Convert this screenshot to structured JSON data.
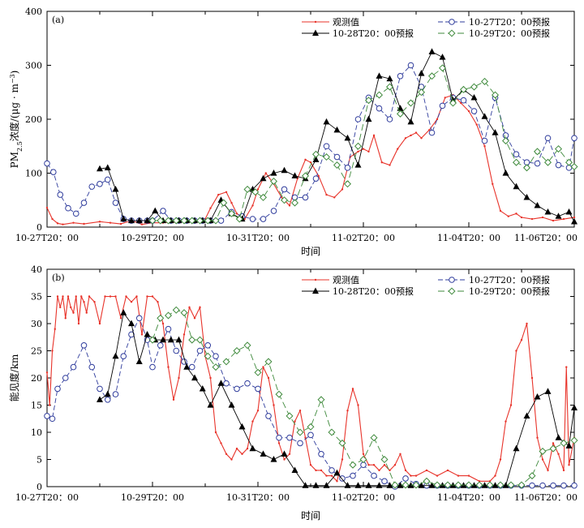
{
  "chart_data": [
    {
      "panel_label": "(a)",
      "type": "line",
      "xlabel": "时间",
      "ylabel_main": "PM",
      "ylabel_sub": "2.5",
      "ylabel_rest": "浓度/(μg · m",
      "ylabel_sup": "−3",
      "ylabel_end": ")",
      "x_range_days": [
        0,
        10
      ],
      "ylim": [
        0,
        400
      ],
      "yticks": [
        0,
        100,
        200,
        300,
        400
      ],
      "xtick_labels": [
        {
          "day": 0,
          "label": "10-27T20：00"
        },
        {
          "day": 2,
          "label": "10-29T20：00"
        },
        {
          "day": 4,
          "label": "10-31T20：00"
        },
        {
          "day": 6,
          "label": "11-02T20：00"
        },
        {
          "day": 8,
          "label": "11-04T20：00"
        },
        {
          "day": 10,
          "label": "11-06T20：00"
        }
      ],
      "legend": [
        "观测值",
        "10-27T20：00预报",
        "10-28T20：00预报",
        "10-29T20：00预报"
      ],
      "series": [
        {
          "name": "观测值",
          "color": "#e8332a",
          "marker": "dot",
          "x": [
            0,
            0.1,
            0.2,
            0.3,
            0.5,
            0.7,
            1.0,
            1.2,
            1.4,
            1.6,
            1.8,
            2.0,
            2.2,
            2.4,
            2.6,
            2.8,
            3.0,
            3.1,
            3.25,
            3.4,
            3.5,
            3.6,
            3.75,
            3.9,
            4.0,
            4.15,
            4.3,
            4.45,
            4.6,
            4.75,
            4.9,
            5.0,
            5.15,
            5.3,
            5.45,
            5.6,
            5.75,
            5.9,
            6.0,
            6.1,
            6.2,
            6.35,
            6.5,
            6.65,
            6.8,
            6.9,
            7.0,
            7.1,
            7.25,
            7.4,
            7.55,
            7.7,
            7.85,
            8.0,
            8.15,
            8.3,
            8.45,
            8.6,
            8.75,
            8.9,
            9.0,
            9.2,
            9.4,
            9.6,
            9.8,
            10.0
          ],
          "y": [
            36,
            15,
            7,
            5,
            8,
            6,
            10,
            8,
            6,
            12,
            5,
            8,
            8,
            10,
            12,
            8,
            15,
            35,
            60,
            65,
            45,
            25,
            15,
            40,
            70,
            100,
            80,
            55,
            40,
            90,
            125,
            120,
            95,
            60,
            55,
            70,
            130,
            140,
            145,
            140,
            170,
            120,
            115,
            145,
            165,
            170,
            175,
            165,
            180,
            200,
            240,
            245,
            230,
            215,
            190,
            150,
            80,
            30,
            20,
            25,
            18,
            15,
            18,
            12,
            15,
            18
          ]
        },
        {
          "name": "10-27T20：00预报",
          "color": "#2f3c9c",
          "marker": "circle",
          "dash": "6,3",
          "x": [
            0,
            0.12,
            0.25,
            0.4,
            0.55,
            0.7,
            0.85,
            1.0,
            1.15,
            1.3,
            1.45,
            1.6,
            1.75,
            1.9,
            2.0,
            2.2,
            2.35,
            2.5,
            2.65,
            2.8,
            2.95,
            3.1,
            3.3,
            3.5,
            3.7,
            3.9,
            4.1,
            4.3,
            4.5,
            4.7,
            4.9,
            5.1,
            5.3,
            5.5,
            5.7,
            5.9,
            6.1,
            6.3,
            6.5,
            6.7,
            6.9,
            7.1,
            7.3,
            7.5,
            7.7,
            7.9,
            8.1,
            8.3,
            8.5,
            8.7,
            8.9,
            9.1,
            9.3,
            9.5,
            9.7,
            9.9,
            10.0
          ],
          "y": [
            118,
            102,
            60,
            35,
            25,
            45,
            75,
            80,
            88,
            45,
            15,
            12,
            12,
            12,
            12,
            30,
            12,
            12,
            12,
            12,
            12,
            12,
            12,
            28,
            20,
            15,
            15,
            30,
            70,
            55,
            55,
            90,
            150,
            130,
            110,
            200,
            240,
            220,
            200,
            280,
            300,
            260,
            175,
            225,
            240,
            235,
            215,
            160,
            240,
            170,
            135,
            120,
            118,
            165,
            115,
            110,
            165
          ]
        },
        {
          "name": "10-28T20：00预报",
          "color": "#000000",
          "marker": "triangle",
          "x": [
            1.0,
            1.15,
            1.3,
            1.45,
            1.6,
            1.75,
            1.9,
            2.05,
            2.2,
            2.35,
            2.5,
            2.65,
            2.8,
            2.95,
            3.1,
            3.3,
            3.5,
            3.7,
            3.9,
            4.1,
            4.3,
            4.5,
            4.7,
            4.9,
            5.1,
            5.3,
            5.5,
            5.7,
            5.9,
            6.1,
            6.3,
            6.5,
            6.7,
            6.9,
            7.1,
            7.3,
            7.5,
            7.7,
            7.9,
            8.1,
            8.3,
            8.5,
            8.7,
            8.9,
            9.1,
            9.3,
            9.5,
            9.7,
            9.9,
            10.0
          ],
          "y": [
            108,
            110,
            70,
            15,
            12,
            12,
            12,
            30,
            12,
            12,
            12,
            12,
            12,
            12,
            12,
            50,
            25,
            15,
            70,
            90,
            100,
            105,
            95,
            90,
            125,
            195,
            180,
            165,
            115,
            200,
            280,
            275,
            220,
            195,
            285,
            325,
            315,
            235,
            255,
            240,
            205,
            175,
            100,
            75,
            55,
            40,
            28,
            20,
            28,
            10
          ]
        },
        {
          "name": "10-29T20：00预报",
          "color": "#3f8a3c",
          "marker": "diamond",
          "dash": "8,4",
          "x": [
            2.0,
            2.15,
            2.3,
            2.45,
            2.6,
            2.75,
            2.9,
            3.05,
            3.2,
            3.35,
            3.5,
            3.65,
            3.8,
            3.95,
            4.1,
            4.3,
            4.5,
            4.7,
            4.9,
            5.1,
            5.3,
            5.5,
            5.7,
            5.9,
            6.1,
            6.3,
            6.5,
            6.7,
            6.9,
            7.1,
            7.3,
            7.5,
            7.7,
            7.9,
            8.1,
            8.3,
            8.5,
            8.7,
            8.9,
            9.1,
            9.3,
            9.5,
            9.7,
            9.9,
            10.0
          ],
          "y": [
            12,
            12,
            12,
            12,
            12,
            12,
            12,
            12,
            12,
            45,
            25,
            15,
            70,
            65,
            55,
            85,
            50,
            45,
            95,
            135,
            130,
            115,
            80,
            150,
            235,
            245,
            260,
            210,
            230,
            250,
            280,
            295,
            230,
            255,
            260,
            270,
            245,
            160,
            120,
            110,
            140,
            120,
            145,
            120,
            112
          ]
        }
      ]
    },
    {
      "panel_label": "(b)",
      "type": "line",
      "xlabel": "时间",
      "ylabel": "能见度/km",
      "x_range_days": [
        0,
        10
      ],
      "ylim": [
        0,
        40
      ],
      "yticks": [
        0,
        5,
        10,
        15,
        20,
        25,
        30,
        35,
        40
      ],
      "xtick_labels": [
        {
          "day": 0,
          "label": "10-27T20：00"
        },
        {
          "day": 2,
          "label": "10-29T20：00"
        },
        {
          "day": 4,
          "label": "10-31T20：00"
        },
        {
          "day": 6,
          "label": "11-02T20：00"
        },
        {
          "day": 8,
          "label": "11-04T20：00"
        },
        {
          "day": 10,
          "label": "11-06T20：00"
        }
      ],
      "legend": [
        "观测值",
        "10-27T20：00预报",
        "10-28T20：00预报",
        "10-29T20：00预报"
      ],
      "series": [
        {
          "name": "观测值",
          "color": "#e8332a",
          "marker": "dot",
          "x": [
            0,
            0.05,
            0.1,
            0.15,
            0.2,
            0.25,
            0.3,
            0.35,
            0.4,
            0.45,
            0.5,
            0.55,
            0.6,
            0.65,
            0.7,
            0.75,
            0.8,
            0.9,
            1.0,
            1.1,
            1.2,
            1.3,
            1.4,
            1.5,
            1.6,
            1.7,
            1.8,
            1.9,
            2.0,
            2.1,
            2.2,
            2.3,
            2.4,
            2.5,
            2.6,
            2.7,
            2.8,
            2.9,
            3.0,
            3.1,
            3.2,
            3.3,
            3.4,
            3.5,
            3.6,
            3.7,
            3.8,
            3.9,
            4.0,
            4.1,
            4.2,
            4.3,
            4.4,
            4.5,
            4.6,
            4.7,
            4.8,
            4.9,
            5.0,
            5.1,
            5.2,
            5.3,
            5.4,
            5.5,
            5.6,
            5.7,
            5.8,
            5.9,
            6.0,
            6.1,
            6.2,
            6.3,
            6.4,
            6.5,
            6.6,
            6.7,
            6.8,
            6.9,
            7.0,
            7.2,
            7.4,
            7.6,
            7.8,
            8.0,
            8.2,
            8.4,
            8.5,
            8.6,
            8.7,
            8.8,
            8.9,
            9.0,
            9.1,
            9.2,
            9.3,
            9.4,
            9.5,
            9.6,
            9.7,
            9.8,
            9.85,
            9.9,
            10.0
          ],
          "y": [
            21,
            15,
            25,
            29,
            35,
            33,
            35,
            31,
            35,
            33,
            32,
            35,
            30,
            35,
            34,
            32,
            35,
            34,
            30,
            35,
            35,
            35,
            31,
            35,
            34,
            35,
            28,
            35,
            35,
            34,
            30,
            22,
            16,
            20,
            28,
            33,
            31,
            33,
            24,
            20,
            10,
            8,
            6,
            5,
            7,
            6,
            7,
            12,
            14,
            22,
            20,
            15,
            8,
            5,
            6,
            12,
            14,
            9,
            4,
            3,
            3,
            2,
            2,
            1,
            5,
            14,
            18,
            15,
            6,
            4,
            4,
            3,
            4,
            3,
            4,
            6,
            3,
            2,
            2,
            3,
            2,
            3,
            2,
            2,
            1,
            1,
            2,
            5,
            12,
            15,
            25,
            27,
            30,
            20,
            9,
            5,
            3,
            8,
            6,
            3,
            22,
            4,
            9
          ]
        },
        {
          "name": "10-27T20：00预报",
          "color": "#2f3c9c",
          "marker": "circle",
          "dash": "6,3",
          "x": [
            0,
            0.1,
            0.2,
            0.35,
            0.5,
            0.7,
            0.85,
            1.0,
            1.15,
            1.3,
            1.45,
            1.6,
            1.75,
            1.9,
            2.0,
            2.15,
            2.3,
            2.45,
            2.6,
            2.75,
            2.9,
            3.05,
            3.2,
            3.4,
            3.6,
            3.8,
            4.0,
            4.2,
            4.4,
            4.6,
            4.8,
            5.0,
            5.2,
            5.4,
            5.6,
            5.8,
            6.0,
            6.2,
            6.4,
            6.6,
            6.8,
            7.0,
            7.2,
            7.4,
            7.6,
            7.8,
            8.0,
            8.2,
            8.4,
            8.6,
            8.8,
            9.0,
            9.2,
            9.4,
            9.6,
            9.8,
            10.0
          ],
          "y": [
            13,
            12.5,
            18,
            20,
            22,
            26,
            22,
            18,
            16,
            17,
            24,
            28,
            31,
            27,
            22,
            26,
            29,
            25,
            23,
            22,
            25,
            26,
            24,
            19,
            18,
            19,
            18,
            13,
            9,
            9,
            8,
            9.5,
            6,
            3,
            1.5,
            2,
            4,
            2,
            1,
            0,
            1.5,
            0.5,
            0.2,
            0.2,
            0.2,
            0.2,
            0.2,
            0.2,
            0.2,
            0.2,
            0.2,
            0.2,
            0.2,
            0.2,
            0.2,
            0.2,
            0.2
          ]
        },
        {
          "name": "10-28T20：00预报",
          "color": "#000000",
          "marker": "triangle",
          "x": [
            1.0,
            1.15,
            1.3,
            1.45,
            1.6,
            1.75,
            1.9,
            2.05,
            2.2,
            2.35,
            2.5,
            2.65,
            2.8,
            2.95,
            3.1,
            3.3,
            3.5,
            3.7,
            3.9,
            4.1,
            4.3,
            4.5,
            4.7,
            4.9,
            5.1,
            5.3,
            5.5,
            5.7,
            5.9,
            6.1,
            6.3,
            6.5,
            6.7,
            6.9,
            7.1,
            7.3,
            7.5,
            7.7,
            7.9,
            8.1,
            8.3,
            8.5,
            8.7,
            8.9,
            9.1,
            9.3,
            9.5,
            9.7,
            9.9,
            10.0
          ],
          "y": [
            16,
            17,
            24,
            32,
            30,
            23,
            28,
            27,
            27,
            27,
            27,
            22,
            20,
            18,
            15,
            19,
            15,
            11,
            7,
            6,
            5,
            6,
            3,
            0.2,
            0.2,
            0.2,
            2.5,
            0.2,
            0.2,
            0.2,
            0.2,
            0.2,
            0.2,
            0.2,
            0.2,
            0.2,
            0.2,
            0.2,
            0.2,
            0.2,
            0.2,
            0.2,
            0.2,
            7,
            13,
            16.5,
            17.5,
            9,
            7.5,
            14.5
          ]
        },
        {
          "name": "10-29T20：00预报",
          "color": "#3f8a3c",
          "marker": "diamond",
          "dash": "8,4",
          "x": [
            2.0,
            2.15,
            2.3,
            2.45,
            2.6,
            2.75,
            2.9,
            3.05,
            3.2,
            3.4,
            3.6,
            3.8,
            4.0,
            4.2,
            4.4,
            4.6,
            4.8,
            5.0,
            5.2,
            5.4,
            5.6,
            5.8,
            6.0,
            6.2,
            6.4,
            6.6,
            6.8,
            7.0,
            7.2,
            7.4,
            7.6,
            7.8,
            8.0,
            8.2,
            8.4,
            8.6,
            8.8,
            9.0,
            9.2,
            9.4,
            9.6,
            9.8,
            10.0
          ],
          "y": [
            27,
            31,
            31.5,
            32.5,
            32,
            27,
            27,
            24,
            22,
            23,
            25,
            26,
            21,
            23,
            17,
            13,
            10,
            11,
            16,
            10,
            8,
            4,
            5,
            9,
            5,
            0.3,
            0.3,
            0.3,
            1,
            0.3,
            0.3,
            0.3,
            0.3,
            0.3,
            0.3,
            0.3,
            0.3,
            0.3,
            2,
            6.5,
            7,
            8,
            8.5
          ]
        }
      ]
    }
  ]
}
